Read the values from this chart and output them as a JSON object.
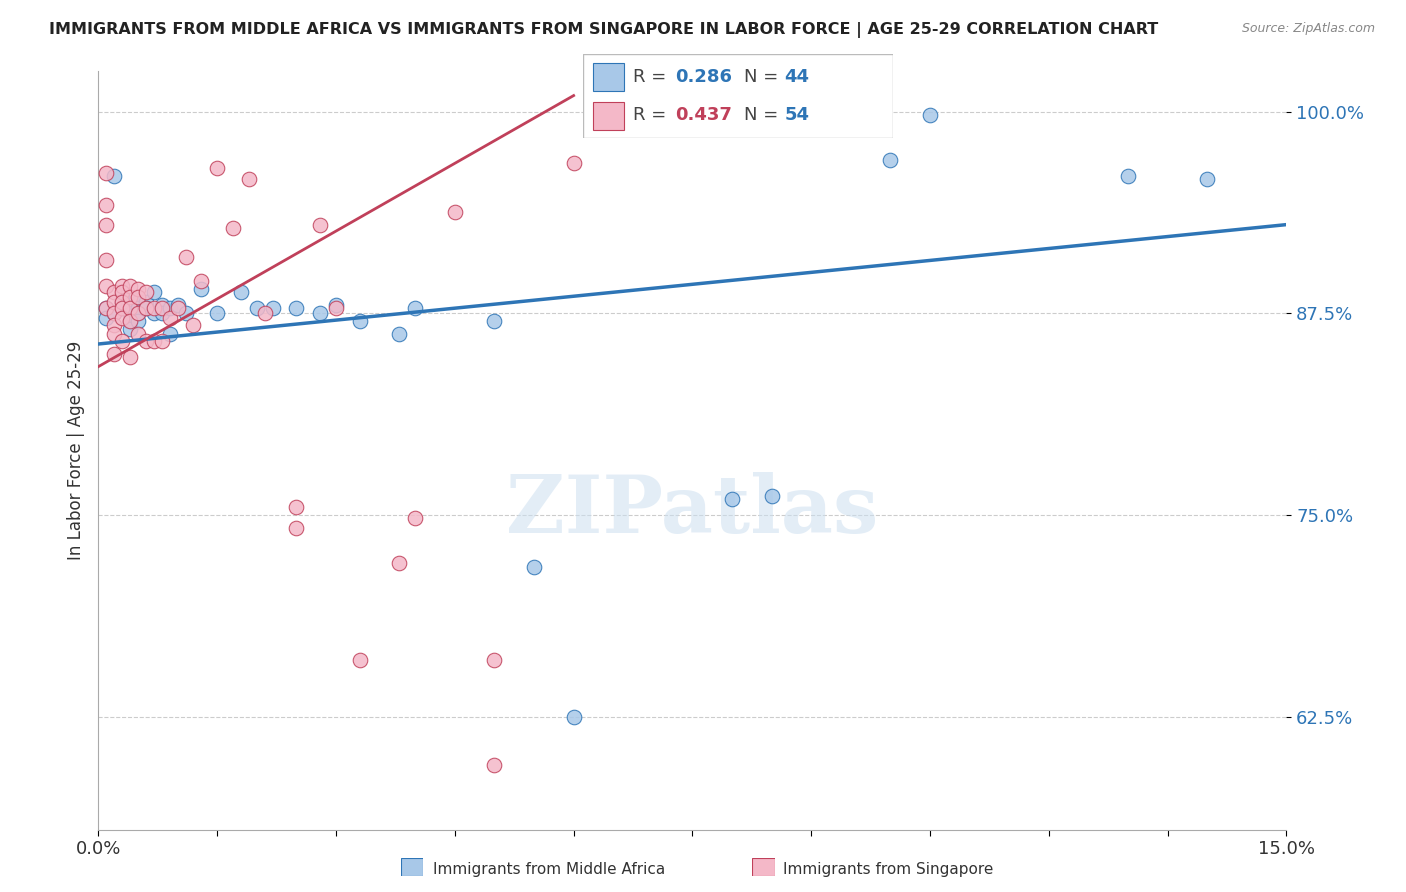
{
  "title": "IMMIGRANTS FROM MIDDLE AFRICA VS IMMIGRANTS FROM SINGAPORE IN LABOR FORCE | AGE 25-29 CORRELATION CHART",
  "source": "Source: ZipAtlas.com",
  "ylabel": "In Labor Force | Age 25-29",
  "xlim": [
    0.0,
    0.15
  ],
  "ylim": [
    0.555,
    1.025
  ],
  "yticks": [
    0.625,
    0.75,
    0.875,
    1.0
  ],
  "ytick_labels": [
    "62.5%",
    "75.0%",
    "87.5%",
    "100.0%"
  ],
  "blue_R": 0.286,
  "blue_N": 44,
  "pink_R": 0.437,
  "pink_N": 54,
  "blue_color": "#a8c8e8",
  "blue_line_color": "#2e75b6",
  "pink_color": "#f4b8c8",
  "pink_line_color": "#c0405a",
  "background_color": "#ffffff",
  "watermark": "ZIPatlas",
  "blue_scatter_x": [
    0.001,
    0.001,
    0.002,
    0.002,
    0.003,
    0.003,
    0.003,
    0.004,
    0.004,
    0.004,
    0.005,
    0.005,
    0.005,
    0.005,
    0.006,
    0.006,
    0.007,
    0.007,
    0.008,
    0.008,
    0.009,
    0.009,
    0.01,
    0.011,
    0.013,
    0.015,
    0.018,
    0.02,
    0.022,
    0.025,
    0.028,
    0.03,
    0.033,
    0.038,
    0.04,
    0.05,
    0.055,
    0.06,
    0.08,
    0.085,
    0.1,
    0.105,
    0.13,
    0.14
  ],
  "blue_scatter_y": [
    0.878,
    0.872,
    0.96,
    0.875,
    0.885,
    0.882,
    0.878,
    0.875,
    0.87,
    0.865,
    0.882,
    0.878,
    0.875,
    0.87,
    0.882,
    0.878,
    0.888,
    0.875,
    0.88,
    0.875,
    0.878,
    0.862,
    0.88,
    0.875,
    0.89,
    0.875,
    0.888,
    0.878,
    0.878,
    0.878,
    0.875,
    0.88,
    0.87,
    0.862,
    0.878,
    0.87,
    0.718,
    0.625,
    0.76,
    0.762,
    0.97,
    0.998,
    0.96,
    0.958
  ],
  "pink_scatter_x": [
    0.001,
    0.001,
    0.001,
    0.001,
    0.001,
    0.001,
    0.002,
    0.002,
    0.002,
    0.002,
    0.002,
    0.002,
    0.003,
    0.003,
    0.003,
    0.003,
    0.003,
    0.003,
    0.004,
    0.004,
    0.004,
    0.004,
    0.004,
    0.005,
    0.005,
    0.005,
    0.005,
    0.006,
    0.006,
    0.006,
    0.007,
    0.007,
    0.008,
    0.008,
    0.009,
    0.01,
    0.011,
    0.012,
    0.013,
    0.015,
    0.017,
    0.019,
    0.021,
    0.025,
    0.025,
    0.028,
    0.03,
    0.033,
    0.038,
    0.04,
    0.045,
    0.05,
    0.05,
    0.06
  ],
  "pink_scatter_y": [
    0.962,
    0.942,
    0.93,
    0.908,
    0.892,
    0.878,
    0.888,
    0.882,
    0.875,
    0.868,
    0.862,
    0.85,
    0.892,
    0.888,
    0.882,
    0.878,
    0.872,
    0.858,
    0.892,
    0.885,
    0.878,
    0.87,
    0.848,
    0.89,
    0.885,
    0.875,
    0.862,
    0.888,
    0.878,
    0.858,
    0.878,
    0.858,
    0.878,
    0.858,
    0.872,
    0.878,
    0.91,
    0.868,
    0.895,
    0.965,
    0.928,
    0.958,
    0.875,
    0.755,
    0.742,
    0.93,
    0.878,
    0.66,
    0.72,
    0.748,
    0.938,
    0.66,
    0.595,
    0.968
  ],
  "blue_line_x0": 0.0,
  "blue_line_x1": 0.15,
  "blue_line_y0": 0.856,
  "blue_line_y1": 0.93,
  "pink_line_x0": 0.0,
  "pink_line_x1": 0.06,
  "pink_line_y0": 0.842,
  "pink_line_y1": 1.01
}
